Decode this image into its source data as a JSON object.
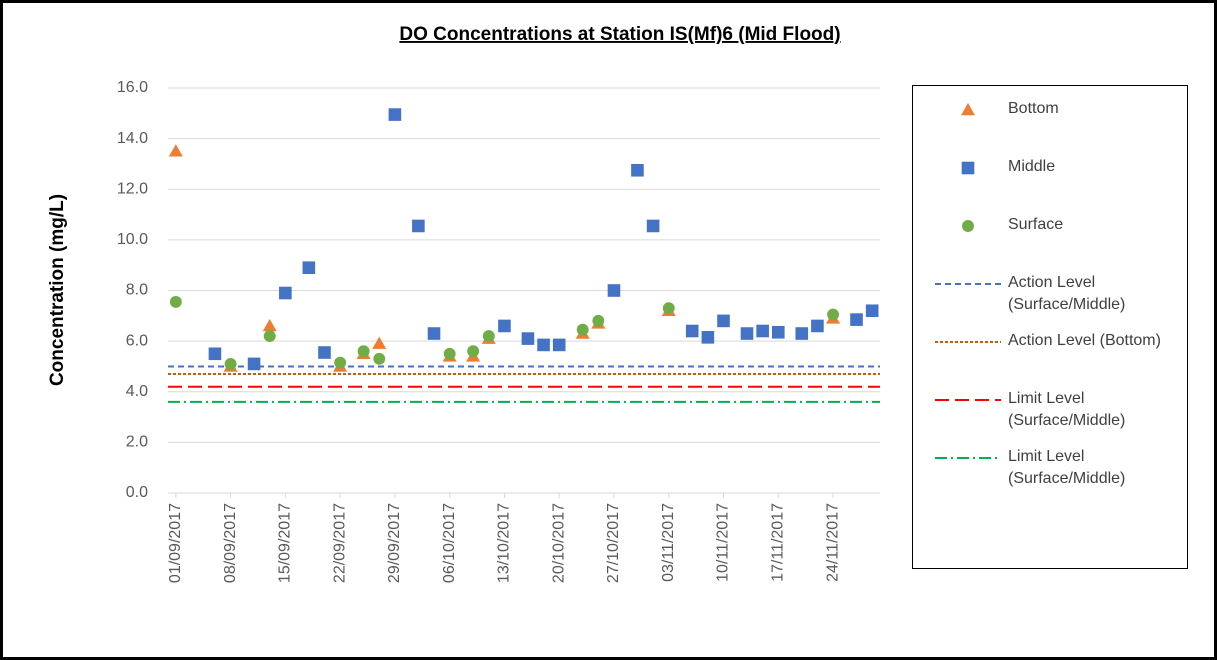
{
  "chart_data": {
    "type": "scatter",
    "title": "DO Concentrations at Station IS(Mf)6 (Mid Flood)",
    "y_label": "Concentration (mg/L)",
    "xlim": [
      "2017-08-31",
      "2017-11-30"
    ],
    "xticks": [
      {
        "value": "2017-09-01",
        "label": "01/09/2017"
      },
      {
        "value": "2017-09-08",
        "label": "08/09/2017"
      },
      {
        "value": "2017-09-15",
        "label": "15/09/2017"
      },
      {
        "value": "2017-09-22",
        "label": "22/09/2017"
      },
      {
        "value": "2017-09-29",
        "label": "29/09/2017"
      },
      {
        "value": "2017-10-06",
        "label": "06/10/2017"
      },
      {
        "value": "2017-10-13",
        "label": "13/10/2017"
      },
      {
        "value": "2017-10-20",
        "label": "20/10/2017"
      },
      {
        "value": "2017-10-27",
        "label": "27/10/2017"
      },
      {
        "value": "2017-11-03",
        "label": "03/11/2017"
      },
      {
        "value": "2017-11-10",
        "label": "10/11/2017"
      },
      {
        "value": "2017-11-17",
        "label": "17/11/2017"
      },
      {
        "value": "2017-11-24",
        "label": "24/11/2017"
      }
    ],
    "ylim": [
      0,
      16
    ],
    "yticks": [
      {
        "value": 0,
        "label": "0.0"
      },
      {
        "value": 2,
        "label": "2.0"
      },
      {
        "value": 4,
        "label": "4.0"
      },
      {
        "value": 6,
        "label": "6.0"
      },
      {
        "value": 8,
        "label": "8.0"
      },
      {
        "value": 10,
        "label": "10.0"
      },
      {
        "value": 12,
        "label": "12.0"
      },
      {
        "value": 14,
        "label": "14.0"
      },
      {
        "value": 16,
        "label": "16.0"
      }
    ],
    "grid": true,
    "legend": "right",
    "series": [
      {
        "name": "Bottom",
        "color": "#ed7d31",
        "marker": "triangle",
        "x": [
          "2017-09-01",
          "2017-09-08",
          "2017-09-13",
          "2017-09-22",
          "2017-09-25",
          "2017-09-27",
          "2017-10-06",
          "2017-10-09",
          "2017-10-11",
          "2017-10-23",
          "2017-10-25",
          "2017-11-03",
          "2017-11-24"
        ],
        "values": [
          13.5,
          5.0,
          6.6,
          5.0,
          5.5,
          5.9,
          5.4,
          5.4,
          6.1,
          6.3,
          6.7,
          7.2,
          6.9
        ]
      },
      {
        "name": "Middle",
        "color": "#4472c4",
        "marker": "square",
        "x": [
          "2017-09-06",
          "2017-09-11",
          "2017-09-15",
          "2017-09-18",
          "2017-09-20",
          "2017-09-29",
          "2017-10-02",
          "2017-10-04",
          "2017-10-13",
          "2017-10-16",
          "2017-10-18",
          "2017-10-20",
          "2017-10-27",
          "2017-10-30",
          "2017-11-01",
          "2017-11-06",
          "2017-11-08",
          "2017-11-10",
          "2017-11-13",
          "2017-11-15",
          "2017-11-17",
          "2017-11-20",
          "2017-11-22",
          "2017-11-27",
          "2017-11-29"
        ],
        "values": [
          5.5,
          5.1,
          7.9,
          8.9,
          5.55,
          14.95,
          10.55,
          6.3,
          6.6,
          6.1,
          5.85,
          5.85,
          8.0,
          12.75,
          10.55,
          6.4,
          6.15,
          6.8,
          6.3,
          6.4,
          6.35,
          6.3,
          6.6,
          6.85,
          7.2
        ]
      },
      {
        "name": "Surface",
        "color": "#70ad47",
        "marker": "circle",
        "x": [
          "2017-09-01",
          "2017-09-08",
          "2017-09-13",
          "2017-09-22",
          "2017-09-25",
          "2017-09-27",
          "2017-10-06",
          "2017-10-09",
          "2017-10-11",
          "2017-10-23",
          "2017-10-25",
          "2017-11-03",
          "2017-11-24"
        ],
        "values": [
          7.55,
          5.1,
          6.2,
          5.15,
          5.6,
          5.3,
          5.5,
          5.6,
          6.2,
          6.45,
          6.8,
          7.3,
          7.05
        ]
      },
      {
        "name": "Action Level (Surface/Middle)",
        "color": "#4472c4",
        "marker": "hline",
        "dash": "6 4",
        "value": 5.0
      },
      {
        "name": "Action Level (Bottom)",
        "color": "#c55a11",
        "marker": "hline",
        "dash": "3 2",
        "value": 4.7
      },
      {
        "name": "Limit Level (Surface/Middle)",
        "color": "#ff0000",
        "marker": "hline",
        "dash": "14 6",
        "value": 4.2
      },
      {
        "name": "Limit Level (Surface/Middle)",
        "color": "#00b050",
        "marker": "hline",
        "dash": "12 4 2 4",
        "value": 3.6
      }
    ]
  }
}
